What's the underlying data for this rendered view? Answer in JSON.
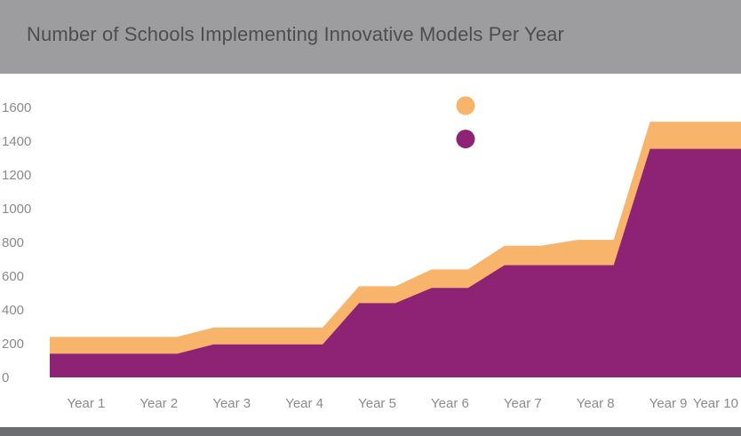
{
  "header": {
    "title": "Number of Schools Implementing Innovative Models Per Year",
    "background_color": "#9d9d9f",
    "title_color": "#4d4d4f"
  },
  "footer": {
    "color": "#6d6e71"
  },
  "chart_data": {
    "type": "area",
    "stacked": true,
    "title": "Number of Schools Implementing Innovative Models Per Year",
    "xlabel": "",
    "ylabel": "",
    "categories": [
      "Year 1",
      "Year 2",
      "Year 3",
      "Year 4",
      "Year 5",
      "Year 6",
      "Year 7",
      "Year 8",
      "Year 9",
      "Year 10"
    ],
    "ylim": [
      0,
      1600
    ],
    "yticks": [
      0,
      200,
      400,
      600,
      800,
      1000,
      1200,
      1400,
      1600
    ],
    "grid": false,
    "legend": {
      "position": "top-center",
      "labels_shown": false
    },
    "series": [
      {
        "color": "#8e2376",
        "values": [
          140,
          140,
          195,
          195,
          440,
          530,
          665,
          665,
          1355,
          1355
        ]
      },
      {
        "color": "#f9b46b",
        "values": [
          100,
          100,
          100,
          100,
          100,
          110,
          115,
          150,
          160,
          160
        ]
      }
    ]
  }
}
